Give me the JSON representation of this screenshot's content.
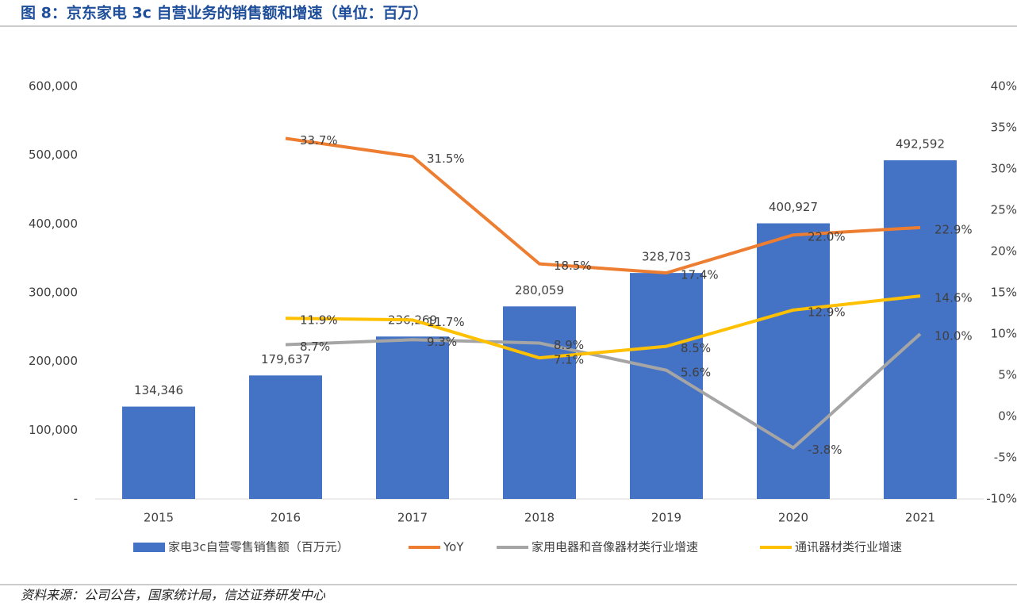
{
  "chart_data": {
    "type": "combo",
    "title": "图 8：京东家电 3c 自营业务的销售额和增速（单位：百万）",
    "source": "资料来源：公司公告，国家统计局，信达证券研发中心",
    "categories": [
      "2015",
      "2016",
      "2017",
      "2018",
      "2019",
      "2020",
      "2021"
    ],
    "series": [
      {
        "name": "家电3c自营零售销售额（百万元）",
        "type": "bar",
        "color": "#4472c4",
        "values": [
          134346,
          179637,
          236269,
          280059,
          328703,
          400927,
          492592
        ],
        "value_labels": [
          "134,346",
          "179,637",
          "236,269",
          "280,059",
          "328,703",
          "400,927",
          "492,592"
        ]
      },
      {
        "name": "YoY",
        "type": "line",
        "axis": "y2",
        "color": "#ed7d31",
        "values": [
          null,
          33.7,
          31.5,
          18.5,
          17.4,
          22.0,
          22.9
        ],
        "value_labels": [
          null,
          "33.7%",
          "31.5%",
          "18.5%",
          "17.4%",
          "22.0%",
          "22.9%"
        ]
      },
      {
        "name": "家用电器和音像器材类行业增速",
        "type": "line",
        "axis": "y2",
        "color": "#a5a5a5",
        "values": [
          null,
          8.7,
          9.3,
          8.9,
          5.6,
          -3.8,
          10.0
        ],
        "value_labels": [
          null,
          "8.7%",
          "9.3%",
          "8.9%",
          "5.6%",
          "-3.8%",
          "10.0%"
        ]
      },
      {
        "name": "通讯器材类行业增速",
        "type": "line",
        "axis": "y2",
        "color": "#ffc000",
        "values": [
          null,
          11.9,
          11.7,
          7.1,
          8.5,
          12.9,
          14.6
        ],
        "value_labels": [
          null,
          "11.9%",
          "11.7%",
          "7.1%",
          "8.5%",
          "12.9%",
          "14.6%"
        ]
      }
    ],
    "ylim": [
      0,
      600000
    ],
    "yticks": [
      {
        "value": 0,
        "label": "-"
      },
      {
        "value": 100000,
        "label": "100,000"
      },
      {
        "value": 200000,
        "label": "200,000"
      },
      {
        "value": 300000,
        "label": "300,000"
      },
      {
        "value": 400000,
        "label": "400,000"
      },
      {
        "value": 500000,
        "label": "500,000"
      },
      {
        "value": 600000,
        "label": "600,000"
      }
    ],
    "y2lim": [
      -10,
      40
    ],
    "y2ticks": [
      {
        "value": -10,
        "label": "-10%"
      },
      {
        "value": -5,
        "label": "-5%"
      },
      {
        "value": 0,
        "label": "0%"
      },
      {
        "value": 5,
        "label": "5%"
      },
      {
        "value": 10,
        "label": "10%"
      },
      {
        "value": 15,
        "label": "15%"
      },
      {
        "value": 20,
        "label": "20%"
      },
      {
        "value": 25,
        "label": "25%"
      },
      {
        "value": 30,
        "label": "30%"
      },
      {
        "value": 35,
        "label": "35%"
      },
      {
        "value": 40,
        "label": "40%"
      }
    ],
    "legend": "bottom"
  }
}
